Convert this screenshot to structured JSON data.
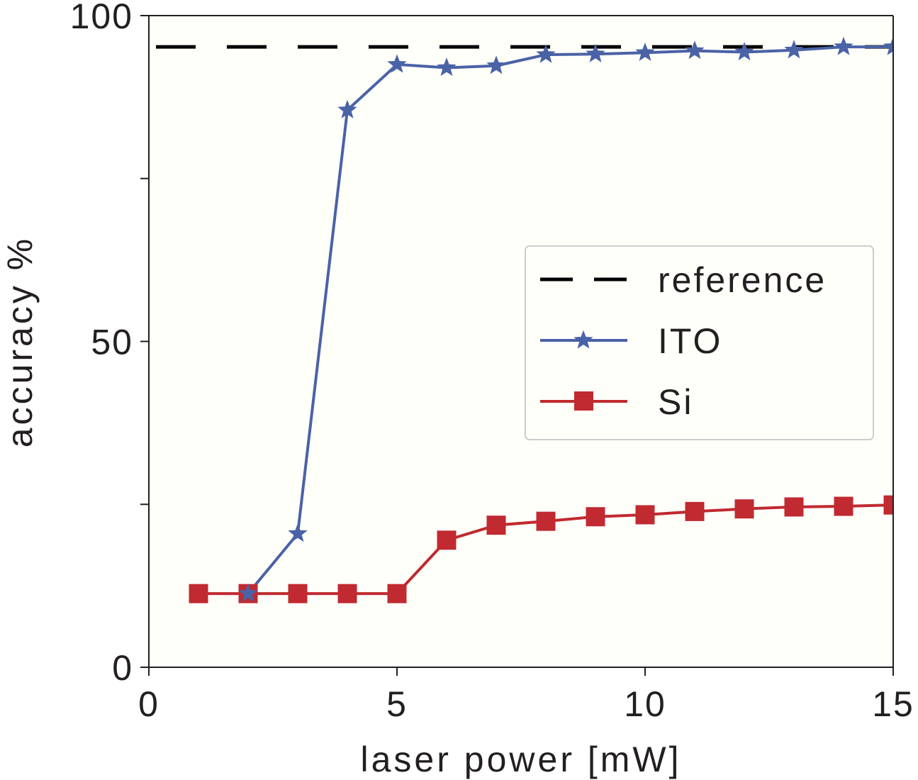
{
  "chart_data": {
    "type": "line",
    "title": "",
    "xlabel": "laser power [mW]",
    "ylabel": "accuracy %",
    "xlim": [
      0,
      15
    ],
    "ylim": [
      0,
      100
    ],
    "x_ticks": [
      0,
      5,
      10,
      15
    ],
    "x_tick_labels": [
      "0",
      "5",
      "10",
      "15"
    ],
    "y_ticks": [
      0,
      25,
      50,
      75,
      100
    ],
    "y_tick_labels": [
      "0",
      "",
      "50",
      "",
      "100"
    ],
    "grid": false,
    "legend_position": "center-right",
    "reference": {
      "name": "reference",
      "value": 95.2,
      "color": "#000000",
      "style": "dashed"
    },
    "series": [
      {
        "name": "ITO",
        "marker": "star",
        "color": "#4a62a6",
        "x": [
          2,
          3,
          4,
          5,
          6,
          7,
          8,
          9,
          10,
          11,
          12,
          13,
          14,
          15
        ],
        "values": [
          11.3,
          20.5,
          85.5,
          92.5,
          92.0,
          92.3,
          94.0,
          94.1,
          94.3,
          94.6,
          94.4,
          94.7,
          95.2,
          95.2
        ]
      },
      {
        "name": "Si",
        "marker": "square",
        "color": "#c02a30",
        "x": [
          1,
          2,
          3,
          4,
          5,
          6,
          7,
          8,
          9,
          10,
          11,
          12,
          13,
          14,
          15
        ],
        "values": [
          11.3,
          11.3,
          11.3,
          11.3,
          11.3,
          19.5,
          21.8,
          22.4,
          23.1,
          23.4,
          23.9,
          24.3,
          24.6,
          24.7,
          24.9
        ]
      }
    ]
  }
}
